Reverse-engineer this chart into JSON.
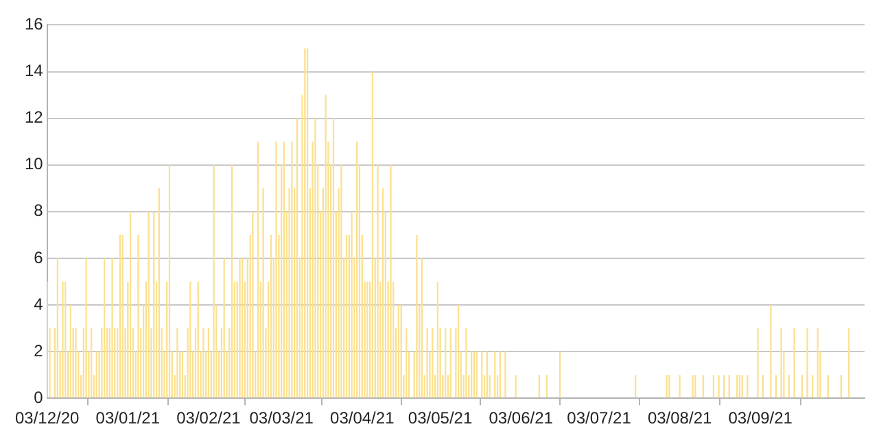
{
  "chart_data": {
    "type": "bar",
    "x": [
      "2020-12-03",
      "2020-12-04",
      "2020-12-05",
      "2020-12-06",
      "2020-12-07",
      "2020-12-08",
      "2020-12-09",
      "2020-12-10",
      "2020-12-11",
      "2020-12-12",
      "2020-12-13",
      "2020-12-14",
      "2020-12-15",
      "2020-12-16",
      "2020-12-17",
      "2020-12-18",
      "2020-12-19",
      "2020-12-20",
      "2020-12-21",
      "2020-12-22",
      "2020-12-23",
      "2020-12-24",
      "2020-12-25",
      "2020-12-26",
      "2020-12-27",
      "2020-12-28",
      "2020-12-29",
      "2020-12-30",
      "2020-12-31",
      "2021-01-01",
      "2021-01-02",
      "2021-01-03",
      "2021-01-04",
      "2021-01-05",
      "2021-01-06",
      "2021-01-07",
      "2021-01-08",
      "2021-01-09",
      "2021-01-10",
      "2021-01-11",
      "2021-01-12",
      "2021-01-13",
      "2021-01-14",
      "2021-01-15",
      "2021-01-16",
      "2021-01-17",
      "2021-01-18",
      "2021-01-19",
      "2021-01-20",
      "2021-01-21",
      "2021-01-22",
      "2021-01-23",
      "2021-01-24",
      "2021-01-25",
      "2021-01-26",
      "2021-01-27",
      "2021-01-28",
      "2021-01-29",
      "2021-01-30",
      "2021-01-31",
      "2021-02-01",
      "2021-02-02",
      "2021-02-03",
      "2021-02-04",
      "2021-02-05",
      "2021-02-06",
      "2021-02-07",
      "2021-02-08",
      "2021-02-09",
      "2021-02-10",
      "2021-02-11",
      "2021-02-12",
      "2021-02-13",
      "2021-02-14",
      "2021-02-15",
      "2021-02-16",
      "2021-02-17",
      "2021-02-18",
      "2021-02-19",
      "2021-02-20",
      "2021-02-21",
      "2021-02-22",
      "2021-02-23",
      "2021-02-24",
      "2021-02-25",
      "2021-02-26",
      "2021-02-27",
      "2021-02-28",
      "2021-03-01",
      "2021-03-02",
      "2021-03-03",
      "2021-03-04",
      "2021-03-05",
      "2021-03-06",
      "2021-03-07",
      "2021-03-08",
      "2021-03-09",
      "2021-03-10",
      "2021-03-11",
      "2021-03-12",
      "2021-03-13",
      "2021-03-14",
      "2021-03-15",
      "2021-03-16",
      "2021-03-17",
      "2021-03-18",
      "2021-03-19",
      "2021-03-20",
      "2021-03-21",
      "2021-03-22",
      "2021-03-23",
      "2021-03-24",
      "2021-03-25",
      "2021-03-26",
      "2021-03-27",
      "2021-03-28",
      "2021-03-29",
      "2021-03-30",
      "2021-03-31",
      "2021-04-01",
      "2021-04-02",
      "2021-04-03",
      "2021-04-04",
      "2021-04-05",
      "2021-04-06",
      "2021-04-07",
      "2021-04-08",
      "2021-04-09",
      "2021-04-10",
      "2021-04-11",
      "2021-04-12",
      "2021-04-13",
      "2021-04-14",
      "2021-04-15",
      "2021-04-16",
      "2021-04-17",
      "2021-04-18",
      "2021-04-19",
      "2021-04-20",
      "2021-04-21",
      "2021-04-22",
      "2021-04-23",
      "2021-04-24",
      "2021-04-25",
      "2021-04-26",
      "2021-04-27",
      "2021-04-28",
      "2021-04-29",
      "2021-04-30",
      "2021-05-01",
      "2021-05-02",
      "2021-05-03",
      "2021-05-04",
      "2021-05-05",
      "2021-05-06",
      "2021-05-07",
      "2021-05-08",
      "2021-05-09",
      "2021-05-10",
      "2021-05-11",
      "2021-05-12",
      "2021-05-13",
      "2021-05-14",
      "2021-05-15",
      "2021-05-16",
      "2021-05-17",
      "2021-05-18",
      "2021-05-19",
      "2021-05-20",
      "2021-05-21",
      "2021-05-22",
      "2021-05-23",
      "2021-05-24",
      "2021-05-25",
      "2021-05-26",
      "2021-05-27",
      "2021-05-28",
      "2021-05-29",
      "2021-05-30",
      "2021-05-31",
      "2021-06-01",
      "2021-06-02",
      "2021-06-10",
      "2021-06-13",
      "2021-06-18",
      "2021-07-17",
      "2021-07-29",
      "2021-07-30",
      "2021-08-03",
      "2021-08-08",
      "2021-08-09",
      "2021-08-12",
      "2021-08-16",
      "2021-08-18",
      "2021-08-20",
      "2021-08-22",
      "2021-08-25",
      "2021-08-26",
      "2021-08-27",
      "2021-08-29",
      "2021-09-02",
      "2021-09-04",
      "2021-09-07",
      "2021-09-09",
      "2021-09-11",
      "2021-09-12",
      "2021-09-14",
      "2021-09-16",
      "2021-09-19",
      "2021-09-21",
      "2021-09-23",
      "2021-09-25",
      "2021-09-26",
      "2021-09-29",
      "2021-10-04",
      "2021-10-07"
    ],
    "series": [
      {
        "color": "#fbe08e",
        "values": [
          5,
          3,
          0,
          3,
          6,
          2,
          5,
          5,
          2,
          4,
          3,
          3,
          2,
          1,
          3,
          6,
          2,
          3,
          1,
          2,
          2,
          3,
          6,
          3,
          3,
          6,
          3,
          3,
          7,
          7,
          3,
          5,
          8,
          3,
          2,
          7,
          3,
          4,
          5,
          8,
          3,
          8,
          5,
          9,
          3,
          2,
          5,
          10,
          2,
          1,
          3,
          2,
          2,
          1,
          3,
          5,
          2,
          3,
          5,
          2,
          3,
          2,
          3,
          2,
          10,
          4,
          2,
          3,
          6,
          2,
          3,
          10,
          5,
          5,
          6,
          6,
          5,
          6,
          7,
          8,
          2,
          11,
          5,
          9,
          3,
          5,
          7,
          6,
          11,
          7,
          10,
          11,
          8,
          9,
          11,
          9,
          12,
          6,
          13,
          15,
          15,
          9,
          11,
          12,
          10,
          8,
          9,
          13,
          11,
          10,
          12,
          8,
          9,
          10,
          6,
          7,
          7,
          8,
          6,
          11,
          10,
          7,
          5,
          5,
          5,
          14,
          6,
          10,
          5,
          9,
          8,
          5,
          10,
          5,
          3,
          4,
          4,
          1,
          3,
          2,
          0,
          2,
          7,
          4,
          6,
          1,
          3,
          2,
          3,
          1,
          5,
          3,
          1,
          3,
          1,
          3,
          0,
          3,
          4,
          2,
          1,
          3,
          1,
          2,
          2,
          2,
          0,
          2,
          1,
          2,
          1,
          0,
          2,
          1,
          2,
          0,
          2,
          0,
          0,
          0,
          1,
          0,
          1,
          1,
          2,
          1,
          1,
          1,
          1,
          1,
          1,
          1,
          1,
          1,
          1,
          1,
          1,
          1,
          1,
          1,
          3,
          1,
          4,
          1,
          3,
          2,
          1,
          3,
          1,
          3,
          1,
          3,
          2,
          1,
          1,
          3
        ]
      }
    ],
    "xlim": [
      "2020-12-03",
      "2021-10-13"
    ],
    "xticks": [
      {
        "value": "2020-12-03",
        "label": "03/12/20"
      },
      {
        "value": "2021-01-03",
        "label": "03/01/21"
      },
      {
        "value": "2021-02-03",
        "label": "03/02/21"
      },
      {
        "value": "2021-03-03",
        "label": "03/03/21"
      },
      {
        "value": "2021-04-03",
        "label": "03/04/21"
      },
      {
        "value": "2021-05-03",
        "label": "03/05/21"
      },
      {
        "value": "2021-06-03",
        "label": "03/06/21"
      },
      {
        "value": "2021-07-03",
        "label": "03/07/21"
      },
      {
        "value": "2021-08-03",
        "label": "03/08/21"
      },
      {
        "value": "2021-09-03",
        "label": "03/09/21"
      }
    ],
    "ylim": [
      0,
      16
    ],
    "yticks": [
      0,
      2,
      4,
      6,
      8,
      10,
      12,
      14,
      16
    ],
    "grid": "y"
  }
}
